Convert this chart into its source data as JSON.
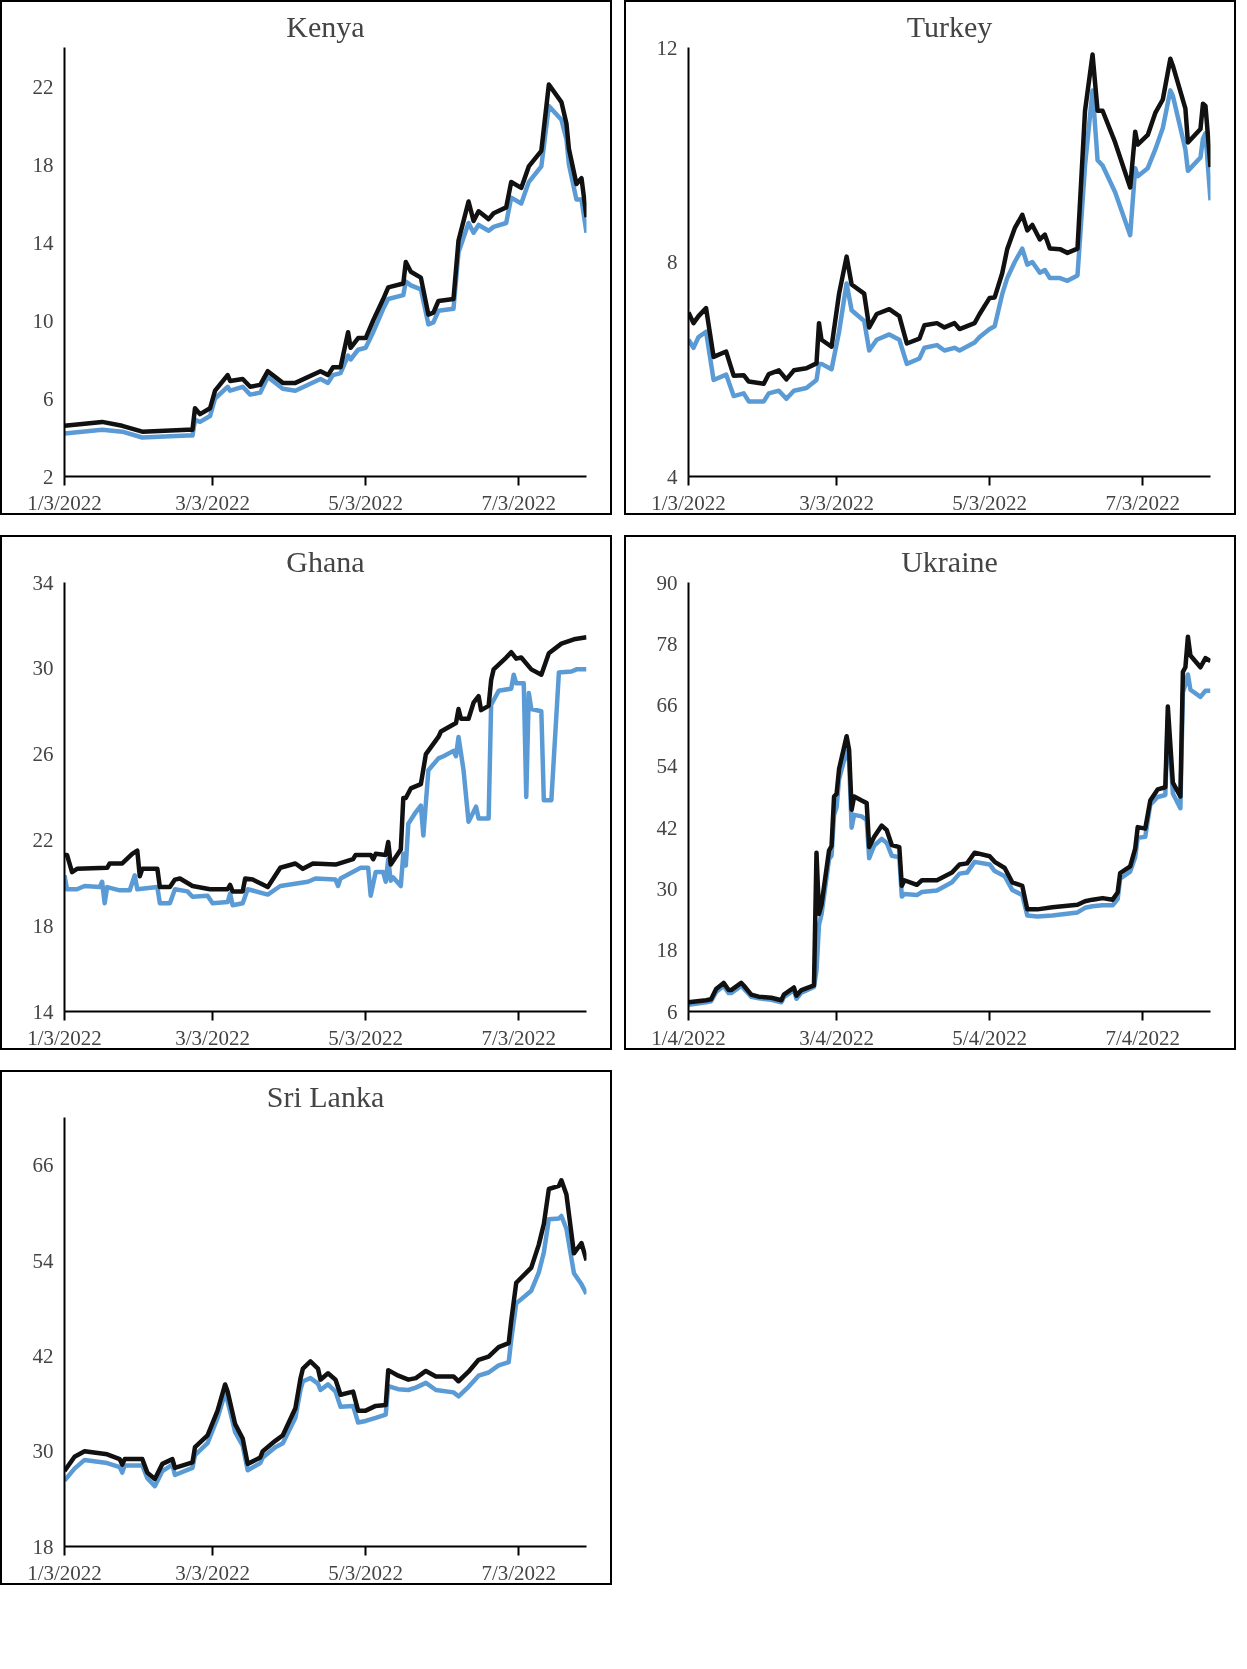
{
  "chart_data": [
    {
      "type": "line",
      "title": "Kenya",
      "marker": "none",
      "line_style": "solid",
      "x": [
        "2022-01-03",
        "2022-01-18",
        "2022-01-26",
        "2022-02-03",
        "2022-02-21",
        "2022-02-23",
        "2022-02-24",
        "2022-02-26",
        "2022-03-02",
        "2022-03-04",
        "2022-03-09",
        "2022-03-10",
        "2022-03-15",
        "2022-03-18",
        "2022-03-22",
        "2022-03-25",
        "2022-03-31",
        "2022-04-05",
        "2022-04-15",
        "2022-04-18",
        "2022-04-20",
        "2022-04-23",
        "2022-04-26",
        "2022-04-27",
        "2022-04-30",
        "2022-05-03",
        "2022-05-06",
        "2022-05-10",
        "2022-05-12",
        "2022-05-18",
        "2022-05-19",
        "2022-05-21",
        "2022-05-25",
        "2022-05-28",
        "2022-05-30",
        "2022-06-01",
        "2022-06-07",
        "2022-06-09",
        "2022-06-13",
        "2022-06-15",
        "2022-06-17",
        "2022-06-21",
        "2022-06-23",
        "2022-06-28",
        "2022-06-30",
        "2022-07-04",
        "2022-07-07",
        "2022-07-12",
        "2022-07-15",
        "2022-07-20",
        "2022-07-22",
        "2022-07-23",
        "2022-07-26",
        "2022-07-28",
        "2022-07-30"
      ],
      "series": [
        {
          "color": "#5b9bd5",
          "values": [
            4.2,
            4.4,
            4.3,
            4.0,
            4.1,
            4.1,
            4.9,
            4.8,
            5.1,
            6.0,
            6.6,
            6.4,
            6.6,
            6.2,
            6.3,
            7.1,
            6.5,
            6.4,
            7.0,
            6.8,
            7.2,
            7.3,
            8.2,
            8.0,
            8.5,
            8.6,
            9.4,
            10.6,
            11.1,
            11.3,
            12.0,
            11.8,
            11.6,
            9.8,
            9.9,
            10.5,
            10.6,
            13.5,
            15.0,
            14.5,
            14.9,
            14.6,
            14.8,
            15.0,
            16.3,
            16.0,
            17.1,
            17.9,
            21.0,
            20.3,
            19.3,
            18.0,
            16.2,
            16.2,
            14.5
          ]
        },
        {
          "color": "#111111",
          "values": [
            4.6,
            4.8,
            4.6,
            4.3,
            4.4,
            4.4,
            5.5,
            5.2,
            5.5,
            6.4,
            7.2,
            6.9,
            7.0,
            6.6,
            6.7,
            7.4,
            6.8,
            6.8,
            7.4,
            7.2,
            7.6,
            7.6,
            9.4,
            8.6,
            9.1,
            9.1,
            10.0,
            11.1,
            11.7,
            11.9,
            13.0,
            12.5,
            12.2,
            10.3,
            10.4,
            11.0,
            11.1,
            14.1,
            16.1,
            15.1,
            15.6,
            15.2,
            15.5,
            15.8,
            17.1,
            16.8,
            17.9,
            18.7,
            22.1,
            21.2,
            20.1,
            18.8,
            17.0,
            17.3,
            15.3
          ]
        }
      ],
      "xlim": [
        "2022-01-03",
        "2022-07-30"
      ],
      "xticks": [
        {
          "value": "2022-01-03",
          "label": "1/3/2022"
        },
        {
          "value": "2022-03-03",
          "label": "3/3/2022"
        },
        {
          "value": "2022-05-03",
          "label": "5/3/2022"
        },
        {
          "value": "2022-07-03",
          "label": "7/3/2022"
        }
      ],
      "ylim": [
        2,
        24
      ],
      "yticks": [
        2,
        6,
        10,
        14,
        18,
        22
      ]
    },
    {
      "type": "line",
      "title": "Turkey",
      "marker": "none",
      "line_style": "solid",
      "x": [
        "2022-01-03",
        "2022-01-05",
        "2022-01-07",
        "2022-01-10",
        "2022-01-13",
        "2022-01-18",
        "2022-01-21",
        "2022-01-25",
        "2022-01-27",
        "2022-02-02",
        "2022-02-04",
        "2022-02-08",
        "2022-02-11",
        "2022-02-14",
        "2022-02-19",
        "2022-02-23",
        "2022-02-24",
        "2022-02-25",
        "2022-03-01",
        "2022-03-04",
        "2022-03-07",
        "2022-03-09",
        "2022-03-14",
        "2022-03-16",
        "2022-03-19",
        "2022-03-24",
        "2022-03-28",
        "2022-03-31",
        "2022-04-05",
        "2022-04-07",
        "2022-04-12",
        "2022-04-15",
        "2022-04-19",
        "2022-04-21",
        "2022-04-27",
        "2022-04-29",
        "2022-05-03",
        "2022-05-05",
        "2022-05-08",
        "2022-05-10",
        "2022-05-13",
        "2022-05-16",
        "2022-05-18",
        "2022-05-20",
        "2022-05-23",
        "2022-05-25",
        "2022-05-27",
        "2022-05-31",
        "2022-06-03",
        "2022-06-07",
        "2022-06-10",
        "2022-06-13",
        "2022-06-15",
        "2022-06-17",
        "2022-06-22",
        "2022-06-28",
        "2022-06-30",
        "2022-07-01",
        "2022-07-05",
        "2022-07-08",
        "2022-07-11",
        "2022-07-14",
        "2022-07-15",
        "2022-07-20",
        "2022-07-21",
        "2022-07-26",
        "2022-07-27",
        "2022-07-28",
        "2022-07-30"
      ],
      "series": [
        {
          "color": "#5b9bd5",
          "values": [
            6.55,
            6.4,
            6.6,
            6.7,
            5.8,
            5.9,
            5.5,
            5.55,
            5.4,
            5.4,
            5.55,
            5.6,
            5.45,
            5.6,
            5.65,
            5.8,
            6.1,
            6.1,
            6.0,
            6.7,
            7.6,
            7.1,
            6.9,
            6.35,
            6.55,
            6.65,
            6.55,
            6.1,
            6.2,
            6.4,
            6.45,
            6.35,
            6.4,
            6.35,
            6.5,
            6.6,
            6.75,
            6.8,
            7.4,
            7.7,
            8.0,
            8.25,
            7.95,
            8.0,
            7.8,
            7.85,
            7.7,
            7.7,
            7.65,
            7.75,
            9.8,
            11.2,
            9.9,
            9.8,
            9.3,
            8.5,
            9.75,
            9.6,
            9.75,
            10.1,
            10.5,
            11.2,
            11.1,
            10.1,
            9.7,
            9.95,
            10.3,
            10.4,
            9.15
          ]
        },
        {
          "color": "#111111",
          "values": [
            7.06,
            6.86,
            6.99,
            7.14,
            6.23,
            6.33,
            5.88,
            5.89,
            5.77,
            5.73,
            5.91,
            5.98,
            5.81,
            5.98,
            6.02,
            6.11,
            6.86,
            6.55,
            6.42,
            7.41,
            8.1,
            7.58,
            7.41,
            6.78,
            7.03,
            7.12,
            6.99,
            6.48,
            6.57,
            6.82,
            6.86,
            6.78,
            6.86,
            6.75,
            6.86,
            7.03,
            7.33,
            7.34,
            7.79,
            8.24,
            8.63,
            8.88,
            8.59,
            8.69,
            8.42,
            8.51,
            8.25,
            8.24,
            8.17,
            8.25,
            10.82,
            11.87,
            10.82,
            10.82,
            10.23,
            9.39,
            10.43,
            10.19,
            10.37,
            10.78,
            11.03,
            11.79,
            11.66,
            10.86,
            10.23,
            10.48,
            10.95,
            10.91,
            9.77
          ]
        }
      ],
      "xlim": [
        "2022-01-03",
        "2022-07-30"
      ],
      "xticks": [
        {
          "value": "2022-01-03",
          "label": "1/3/2022"
        },
        {
          "value": "2022-03-03",
          "label": "3/3/2022"
        },
        {
          "value": "2022-05-03",
          "label": "5/3/2022"
        },
        {
          "value": "2022-07-03",
          "label": "7/3/2022"
        }
      ],
      "ylim": [
        4,
        12
      ],
      "yticks": [
        4,
        8,
        12
      ]
    },
    {
      "type": "line",
      "title": "Ghana",
      "marker": "none",
      "line_style": "solid",
      "series": [
        {
          "color": "#5b9bd5",
          "x": [
            "2022-01-03",
            "2022-01-04",
            "2022-01-08",
            "2022-01-11",
            "2022-01-17",
            "2022-01-18",
            "2022-01-19",
            "2022-01-20",
            "2022-01-25",
            "2022-01-29",
            "2022-01-31",
            "2022-02-01",
            "2022-02-09",
            "2022-02-10",
            "2022-02-14",
            "2022-02-16",
            "2022-02-21",
            "2022-02-23",
            "2022-03-01",
            "2022-03-03",
            "2022-03-09",
            "2022-03-10",
            "2022-03-11",
            "2022-03-15",
            "2022-03-17",
            "2022-03-25",
            "2022-03-30",
            "2022-04-10",
            "2022-04-13",
            "2022-04-21",
            "2022-04-22",
            "2022-04-23",
            "2022-05-01",
            "2022-05-04",
            "2022-05-05",
            "2022-05-07",
            "2022-05-10",
            "2022-05-11",
            "2022-05-12",
            "2022-05-13",
            "2022-05-14",
            "2022-05-17",
            "2022-05-18",
            "2022-05-19",
            "2022-05-20",
            "2022-05-23",
            "2022-05-25",
            "2022-05-26",
            "2022-05-28",
            "2022-06-01",
            "2022-06-03",
            "2022-06-07",
            "2022-06-08",
            "2022-06-09",
            "2022-06-11",
            "2022-06-13",
            "2022-06-16",
            "2022-06-17",
            "2022-06-21",
            "2022-06-22",
            "2022-06-25",
            "2022-06-30",
            "2022-07-01",
            "2022-07-02",
            "2022-07-05",
            "2022-07-06",
            "2022-07-07",
            "2022-07-08",
            "2022-07-12",
            "2022-07-13",
            "2022-07-16",
            "2022-07-19",
            "2022-07-24",
            "2022-07-26",
            "2022-07-30"
          ],
          "values": [
            20.35,
            19.7,
            19.7,
            19.85,
            19.8,
            20.05,
            19.05,
            19.8,
            19.65,
            19.65,
            20.35,
            19.7,
            19.8,
            19.05,
            19.05,
            19.7,
            19.6,
            19.35,
            19.4,
            19.05,
            19.1,
            19.5,
            18.95,
            19.05,
            19.7,
            19.45,
            19.85,
            20.05,
            20.2,
            20.15,
            19.85,
            20.2,
            20.7,
            20.7,
            19.4,
            20.5,
            20.5,
            20.05,
            21.1,
            20.1,
            20.25,
            19.85,
            21.35,
            20.8,
            22.75,
            23.3,
            23.6,
            22.2,
            25.25,
            25.8,
            25.9,
            26.15,
            25.9,
            26.8,
            25.25,
            22.85,
            23.55,
            23.0,
            23.0,
            28.3,
            28.95,
            29.05,
            29.7,
            29.3,
            29.3,
            24.0,
            28.85,
            28.1,
            28.0,
            23.85,
            23.85,
            29.8,
            29.85,
            29.95,
            29.95
          ]
        },
        {
          "color": "#111111",
          "x": [
            "2022-01-03",
            "2022-01-04",
            "2022-01-06",
            "2022-01-08",
            "2022-01-20",
            "2022-01-21",
            "2022-01-26",
            "2022-01-30",
            "2022-02-01",
            "2022-02-02",
            "2022-02-03",
            "2022-02-09",
            "2022-02-10",
            "2022-02-14",
            "2022-02-16",
            "2022-02-18",
            "2022-02-23",
            "2022-03-02",
            "2022-03-09",
            "2022-03-10",
            "2022-03-11",
            "2022-03-15",
            "2022-03-16",
            "2022-03-19",
            "2022-03-25",
            "2022-03-30",
            "2022-04-05",
            "2022-04-08",
            "2022-04-12",
            "2022-04-21",
            "2022-04-28",
            "2022-04-29",
            "2022-05-05",
            "2022-05-06",
            "2022-05-07",
            "2022-05-11",
            "2022-05-12",
            "2022-05-13",
            "2022-05-17",
            "2022-05-18",
            "2022-05-19",
            "2022-05-21",
            "2022-05-25",
            "2022-05-27",
            "2022-06-01",
            "2022-06-02",
            "2022-06-08",
            "2022-06-09",
            "2022-06-10",
            "2022-06-13",
            "2022-06-15",
            "2022-06-17",
            "2022-06-18",
            "2022-06-21",
            "2022-06-22",
            "2022-06-23",
            "2022-06-28",
            "2022-06-30",
            "2022-07-02",
            "2022-07-04",
            "2022-07-08",
            "2022-07-12",
            "2022-07-15",
            "2022-07-20",
            "2022-07-25",
            "2022-07-30"
          ],
          "values": [
            21.3,
            21.3,
            20.5,
            20.65,
            20.7,
            20.9,
            20.9,
            21.35,
            21.5,
            20.3,
            20.65,
            20.65,
            19.8,
            19.8,
            20.15,
            20.2,
            19.85,
            19.7,
            19.7,
            19.9,
            19.6,
            19.6,
            20.2,
            20.15,
            19.8,
            20.7,
            20.9,
            20.65,
            20.9,
            20.85,
            21.1,
            21.3,
            21.3,
            21.1,
            21.35,
            21.3,
            21.9,
            20.85,
            21.55,
            23.95,
            23.95,
            24.4,
            24.6,
            26.0,
            26.8,
            27.05,
            27.45,
            28.1,
            27.65,
            27.65,
            28.4,
            28.7,
            28.05,
            28.25,
            29.45,
            29.95,
            30.5,
            30.75,
            30.45,
            30.5,
            29.95,
            29.7,
            30.7,
            31.15,
            31.35,
            31.45
          ]
        }
      ],
      "xlim": [
        "2022-01-03",
        "2022-07-30"
      ],
      "xticks": [
        {
          "value": "2022-01-03",
          "label": "1/3/2022"
        },
        {
          "value": "2022-03-03",
          "label": "3/3/2022"
        },
        {
          "value": "2022-05-03",
          "label": "5/3/2022"
        },
        {
          "value": "2022-07-03",
          "label": "7/3/2022"
        }
      ],
      "ylim": [
        14,
        34
      ],
      "yticks": [
        14,
        18,
        22,
        26,
        30,
        34
      ]
    },
    {
      "type": "line",
      "title": "Ukraine",
      "marker": "none",
      "line_style": "solid",
      "x": [
        "2022-01-04",
        "2022-01-11",
        "2022-01-13",
        "2022-01-15",
        "2022-01-18",
        "2022-01-20",
        "2022-01-21",
        "2022-01-25",
        "2022-01-26",
        "2022-01-29",
        "2022-02-01",
        "2022-02-06",
        "2022-02-10",
        "2022-02-11",
        "2022-02-15",
        "2022-02-16",
        "2022-02-18",
        "2022-02-23",
        "2022-02-24",
        "2022-02-25",
        "2022-02-26",
        "2022-03-01",
        "2022-03-02",
        "2022-03-03",
        "2022-03-04",
        "2022-03-05",
        "2022-03-08",
        "2022-03-09",
        "2022-03-10",
        "2022-03-11",
        "2022-03-14",
        "2022-03-16",
        "2022-03-17",
        "2022-03-19",
        "2022-03-22",
        "2022-03-24",
        "2022-03-26",
        "2022-03-29",
        "2022-03-30",
        "2022-03-31",
        "2022-04-05",
        "2022-04-07",
        "2022-04-13",
        "2022-04-19",
        "2022-04-22",
        "2022-04-25",
        "2022-04-28",
        "2022-05-04",
        "2022-05-06",
        "2022-05-10",
        "2022-05-13",
        "2022-05-17",
        "2022-05-19",
        "2022-05-23",
        "2022-05-29",
        "2022-06-08",
        "2022-06-11",
        "2022-06-14",
        "2022-06-18",
        "2022-06-22",
        "2022-06-24",
        "2022-06-25",
        "2022-06-29",
        "2022-07-01",
        "2022-07-02",
        "2022-07-05",
        "2022-07-07",
        "2022-07-10",
        "2022-07-13",
        "2022-07-14",
        "2022-07-16",
        "2022-07-19",
        "2022-07-20",
        "2022-07-21",
        "2022-07-22",
        "2022-07-23",
        "2022-07-27",
        "2022-07-29",
        "2022-07-31"
      ],
      "series": [
        {
          "color": "#5b9bd5",
          "values": [
            7.3,
            7.8,
            8.0,
            9.8,
            11.0,
            9.6,
            9.6,
            11.0,
            10.5,
            8.9,
            8.6,
            8.3,
            7.8,
            8.8,
            10.2,
            8.5,
            9.7,
            10.8,
            14.0,
            23.0,
            25.0,
            35.8,
            36.5,
            44.5,
            46.0,
            51.5,
            57.0,
            55.0,
            42.0,
            44.5,
            44.2,
            43.5,
            36.0,
            38.5,
            39.8,
            39.0,
            36.5,
            36.2,
            28.5,
            29.0,
            28.8,
            29.4,
            29.7,
            31.3,
            33.0,
            33.2,
            35.3,
            34.8,
            33.5,
            32.5,
            29.8,
            28.8,
            24.8,
            24.6,
            24.8,
            25.4,
            26.3,
            26.6,
            26.8,
            26.8,
            28.0,
            32.0,
            33.4,
            36.2,
            40.0,
            40.2,
            46.5,
            48.0,
            48.4,
            63.5,
            48.7,
            45.8,
            68.5,
            70.0,
            72.0,
            69.0,
            67.6,
            68.8,
            68.8
          ]
        },
        {
          "color": "#111111",
          "values": [
            7.8,
            8.2,
            8.4,
            10.4,
            11.6,
            10.2,
            10.2,
            11.6,
            11.1,
            9.3,
            8.9,
            8.7,
            8.2,
            9.3,
            10.7,
            9.1,
            10.2,
            11.1,
            37.1,
            25.1,
            26.9,
            37.5,
            38.4,
            48.1,
            48.6,
            53.5,
            59.9,
            57.2,
            45.5,
            48.1,
            47.3,
            46.8,
            38.2,
            40.2,
            42.4,
            41.5,
            38.6,
            38.2,
            30.6,
            31.7,
            30.8,
            31.7,
            31.7,
            33.2,
            34.8,
            35.0,
            37.1,
            36.4,
            35.3,
            34.1,
            31.3,
            30.6,
            26.0,
            26.0,
            26.4,
            26.9,
            27.6,
            27.9,
            28.2,
            27.9,
            29.3,
            33.1,
            34.4,
            37.9,
            42.1,
            41.8,
            47.3,
            49.5,
            49.9,
            65.7,
            50.8,
            48.1,
            72.5,
            73.4,
            79.4,
            75.7,
            73.4,
            75.2,
            74.6
          ]
        }
      ],
      "xlim": [
        "2022-01-04",
        "2022-07-31"
      ],
      "xticks": [
        {
          "value": "2022-01-04",
          "label": "1/4/2022"
        },
        {
          "value": "2022-03-04",
          "label": "3/4/2022"
        },
        {
          "value": "2022-05-04",
          "label": "5/4/2022"
        },
        {
          "value": "2022-07-04",
          "label": "7/4/2022"
        }
      ],
      "ylim": [
        6,
        90
      ],
      "yticks": [
        6,
        18,
        30,
        42,
        54,
        66,
        78,
        90
      ]
    },
    {
      "type": "line",
      "title": "Sri Lanka",
      "marker": "none",
      "line_style": "solid",
      "x": [
        "2022-01-03",
        "2022-01-07",
        "2022-01-11",
        "2022-01-20",
        "2022-01-25",
        "2022-01-26",
        "2022-01-27",
        "2022-02-03",
        "2022-02-05",
        "2022-02-08",
        "2022-02-11",
        "2022-02-15",
        "2022-02-16",
        "2022-02-23",
        "2022-02-24",
        "2022-03-01",
        "2022-03-05",
        "2022-03-08",
        "2022-03-09",
        "2022-03-12",
        "2022-03-15",
        "2022-03-17",
        "2022-03-22",
        "2022-03-23",
        "2022-03-28",
        "2022-03-31",
        "2022-04-05",
        "2022-04-07",
        "2022-04-08",
        "2022-04-11",
        "2022-04-14",
        "2022-04-15",
        "2022-04-18",
        "2022-04-21",
        "2022-04-23",
        "2022-04-28",
        "2022-04-30",
        "2022-05-03",
        "2022-05-07",
        "2022-05-11",
        "2022-05-12",
        "2022-05-16",
        "2022-05-20",
        "2022-05-23",
        "2022-05-27",
        "2022-05-31",
        "2022-06-07",
        "2022-06-09",
        "2022-06-13",
        "2022-06-17",
        "2022-06-21",
        "2022-06-25",
        "2022-06-29",
        "2022-06-30",
        "2022-07-02",
        "2022-07-08",
        "2022-07-11",
        "2022-07-13",
        "2022-07-15",
        "2022-07-19",
        "2022-07-20",
        "2022-07-22",
        "2022-07-25",
        "2022-07-28",
        "2022-07-30"
      ],
      "series": [
        {
          "color": "#5b9bd5",
          "values": [
            26.3,
            27.8,
            28.9,
            28.5,
            28.0,
            27.3,
            28.2,
            28.2,
            26.6,
            25.6,
            27.5,
            28.3,
            27.0,
            27.9,
            29.5,
            31.0,
            34.2,
            37.3,
            36.3,
            32.4,
            30.7,
            27.6,
            28.5,
            29.2,
            30.5,
            31.0,
            34.2,
            37.7,
            38.8,
            39.2,
            38.5,
            37.7,
            38.4,
            37.5,
            35.6,
            35.7,
            33.6,
            33.8,
            34.2,
            34.6,
            38.2,
            37.8,
            37.7,
            38.0,
            38.6,
            37.7,
            37.4,
            36.9,
            38.1,
            39.5,
            39.9,
            40.8,
            41.2,
            44.0,
            48.6,
            50.2,
            52.5,
            55.0,
            59.2,
            59.3,
            59.6,
            58.0,
            52.4,
            51.0,
            49.8
          ]
        },
        {
          "color": "#111111",
          "values": [
            27.5,
            29.3,
            30.0,
            29.6,
            29.0,
            28.3,
            29.0,
            29.0,
            27.3,
            26.5,
            28.4,
            29.0,
            27.9,
            28.6,
            30.5,
            32.0,
            35.1,
            38.4,
            37.5,
            33.4,
            31.6,
            28.4,
            29.2,
            30.0,
            31.3,
            32.0,
            35.4,
            39.1,
            40.4,
            41.3,
            40.4,
            39.0,
            39.8,
            39.0,
            37.1,
            37.5,
            35.1,
            35.1,
            35.7,
            35.8,
            40.2,
            39.5,
            39.0,
            39.2,
            40.1,
            39.4,
            39.4,
            38.8,
            40.0,
            41.5,
            41.9,
            43.1,
            43.6,
            46.4,
            51.2,
            53.1,
            56.0,
            58.6,
            63.0,
            63.4,
            64.1,
            62.3,
            54.9,
            56.2,
            54.0
          ]
        }
      ],
      "xlim": [
        "2022-01-03",
        "2022-07-30"
      ],
      "xticks": [
        {
          "value": "2022-01-03",
          "label": "1/3/2022"
        },
        {
          "value": "2022-03-03",
          "label": "3/3/2022"
        },
        {
          "value": "2022-05-03",
          "label": "5/3/2022"
        },
        {
          "value": "2022-07-03",
          "label": "7/3/2022"
        }
      ],
      "ylim": [
        18,
        72
      ],
      "yticks": [
        18,
        30,
        42,
        54,
        66
      ]
    }
  ]
}
